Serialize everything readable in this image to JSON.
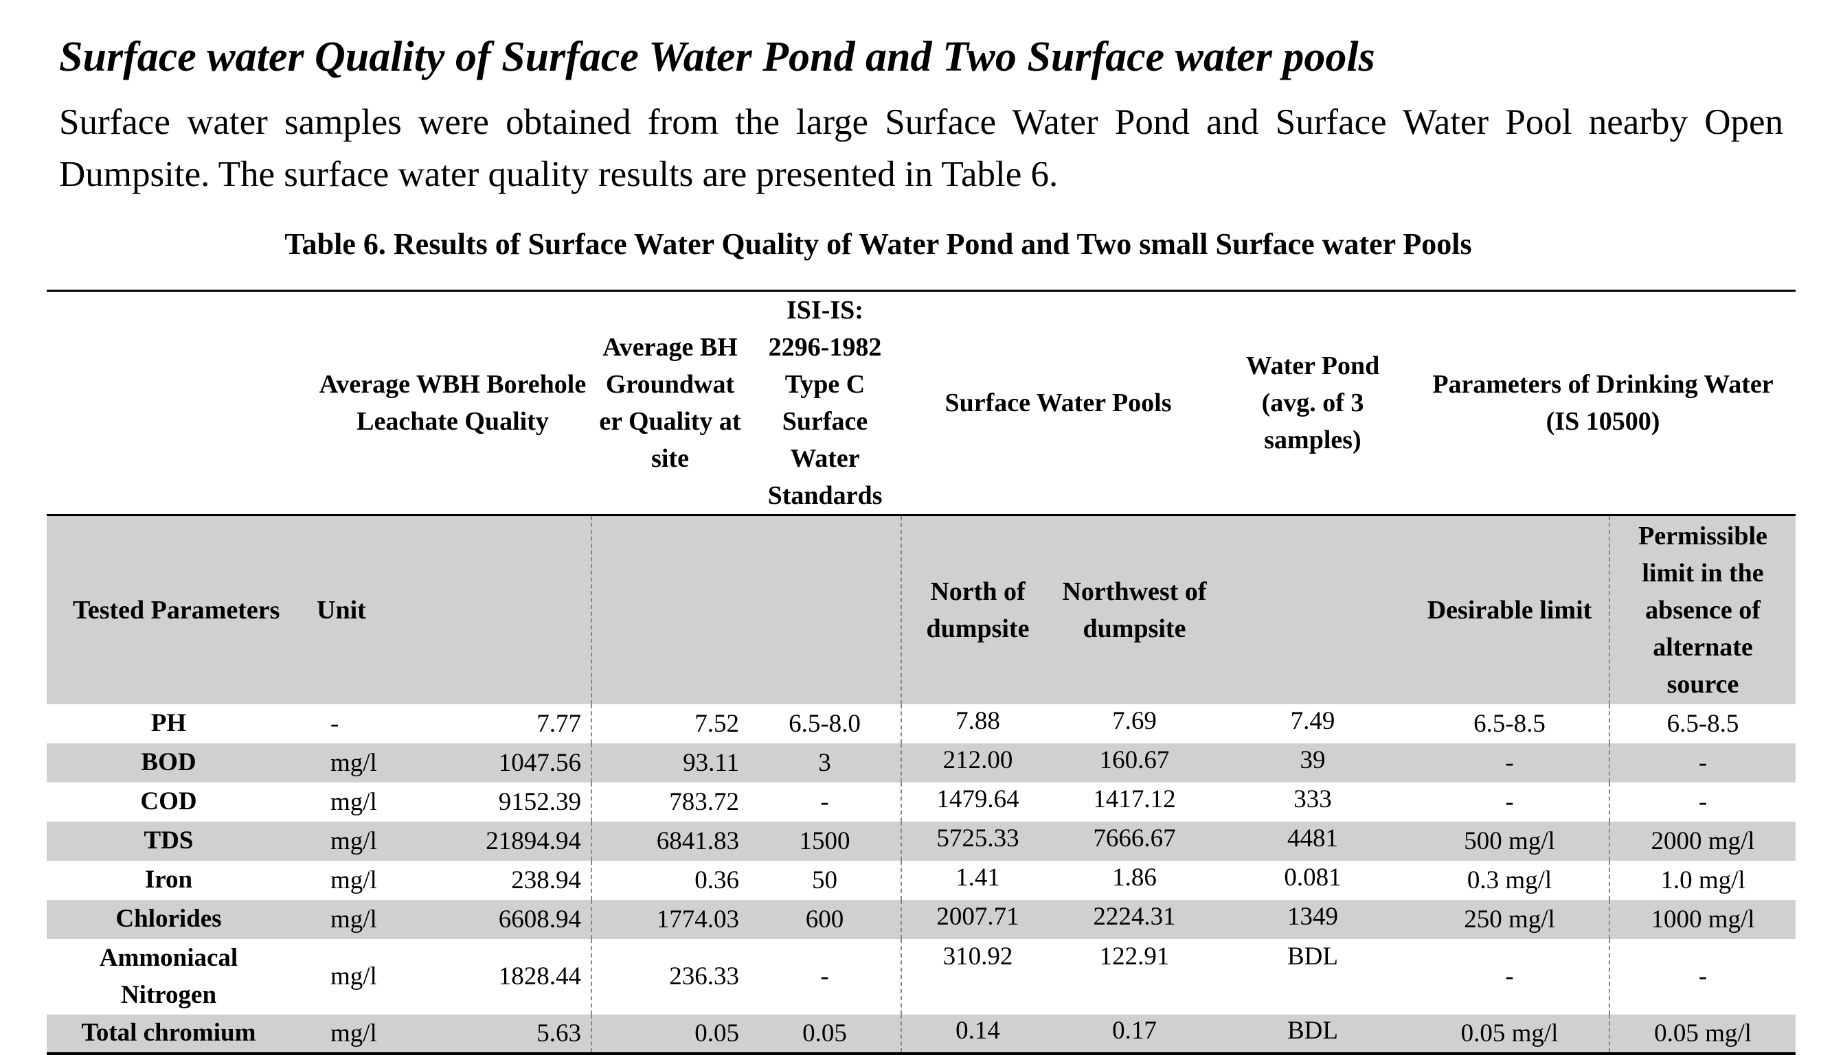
{
  "heading": "Surface water Quality of Surface Water Pond and Two Surface water pools",
  "paragraph": "Surface water samples were obtained from the large Surface Water Pond and Surface Water Pool nearby Open Dumpsite. The surface water quality results are presented in Table 6.",
  "caption": "Table 6. Results of Surface Water Quality of  Water Pond and Two small Surface water Pools",
  "header_top": {
    "wbh": "Average WBH Borehole Leachate Quality",
    "bh": "Average BH Groundwat er Quality at site",
    "isi": "ISI-IS: 2296-1982 Type C Surface Water Standards",
    "pools": "Surface Water Pools",
    "pond": "Water Pond (avg. of 3 samples)",
    "drinking": "Parameters of Drinking Water (IS 10500)"
  },
  "header_sub": {
    "param": "Tested Parameters",
    "unit": "Unit",
    "north": "North of dumpsite",
    "northwest": "Northwest of dumpsite",
    "desirable": "Desirable limit",
    "permissible": "Permissible limit in the absence of alternate source"
  },
  "rows": [
    {
      "param": "PH",
      "unit": "-",
      "wbh": "7.77",
      "bh": "7.52",
      "isi": "6.5-8.0",
      "north": "7.88",
      "northwest": "7.69",
      "pond": "7.49",
      "desirable": "6.5-8.5",
      "permissible": "6.5-8.5"
    },
    {
      "param": "BOD",
      "unit": "mg/l",
      "wbh": "1047.56",
      "bh": "93.11",
      "isi": "3",
      "north": "212.00",
      "northwest": "160.67",
      "pond": "39",
      "desirable": "-",
      "permissible": "-"
    },
    {
      "param": "COD",
      "unit": "mg/l",
      "wbh": "9152.39",
      "bh": "783.72",
      "isi": "-",
      "north": "1479.64",
      "northwest": "1417.12",
      "pond": "333",
      "desirable": "-",
      "permissible": "-"
    },
    {
      "param": "TDS",
      "unit": "mg/l",
      "wbh": "21894.94",
      "bh": "6841.83",
      "isi": "1500",
      "north": "5725.33",
      "northwest": "7666.67",
      "pond": "4481",
      "desirable": "500 mg/l",
      "permissible": "2000 mg/l"
    },
    {
      "param": "Iron",
      "unit": "mg/l",
      "wbh": "238.94",
      "bh": "0.36",
      "isi": "50",
      "north": "1.41",
      "northwest": "1.86",
      "pond": "0.081",
      "desirable": "0.3 mg/l",
      "permissible": "1.0 mg/l"
    },
    {
      "param": "Chlorides",
      "unit": "mg/l",
      "wbh": "6608.94",
      "bh": "1774.03",
      "isi": "600",
      "north": "2007.71",
      "northwest": "2224.31",
      "pond": "1349",
      "desirable": "250 mg/l",
      "permissible": "1000 mg/l"
    },
    {
      "param": "Ammoniacal Nitrogen",
      "unit": "mg/l",
      "wbh": "1828.44",
      "bh": "236.33",
      "isi": "-",
      "north": "310.92",
      "northwest": "122.91",
      "pond": "BDL",
      "desirable": "-",
      "permissible": "-"
    },
    {
      "param": "Total chromium",
      "unit": "mg/l",
      "wbh": "5.63",
      "bh": "0.05",
      "isi": "0.05",
      "north": "0.14",
      "northwest": "0.17",
      "pond": "BDL",
      "desirable": "0.05 mg/l",
      "permissible": "0.05 mg/l"
    }
  ]
}
